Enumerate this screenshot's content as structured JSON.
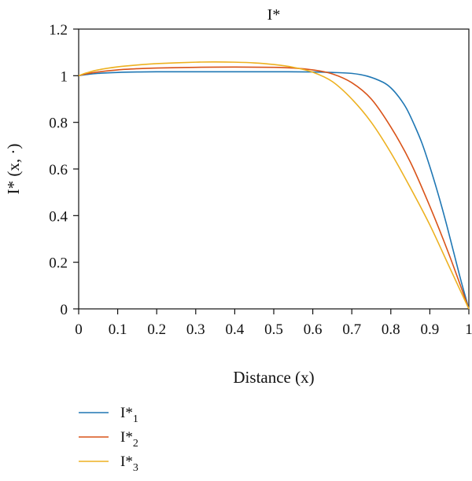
{
  "chart_data": {
    "type": "line",
    "title": "I*",
    "xlabel": "Distance (x)",
    "ylabel": "I* (x, ·)",
    "xlim": [
      0,
      1
    ],
    "ylim": [
      0,
      1.2
    ],
    "x_ticks": [
      "0",
      "0.1",
      "0.2",
      "0.3",
      "0.4",
      "0.5",
      "0.6",
      "0.7",
      "0.8",
      "0.9",
      "1"
    ],
    "y_ticks": [
      "0",
      "0.2",
      "0.4",
      "0.6",
      "0.8",
      "1",
      "1.2"
    ],
    "grid": false,
    "legend_position": "bottom-left",
    "series": [
      {
        "name": "I*1",
        "label_base": "I*",
        "label_sub": "1",
        "color": "#1f77b4",
        "x": [
          0,
          0.02,
          0.05,
          0.1,
          0.15,
          0.2,
          0.3,
          0.4,
          0.5,
          0.6,
          0.65,
          0.7,
          0.74,
          0.78,
          0.8,
          0.82,
          0.84,
          0.86,
          0.88,
          0.9,
          0.92,
          0.94,
          0.96,
          0.98,
          1.0
        ],
        "y": [
          1.0,
          1.005,
          1.01,
          1.014,
          1.016,
          1.017,
          1.017,
          1.017,
          1.017,
          1.016,
          1.014,
          1.01,
          0.998,
          0.972,
          0.948,
          0.91,
          0.86,
          0.79,
          0.71,
          0.61,
          0.5,
          0.38,
          0.25,
          0.12,
          0.0
        ]
      },
      {
        "name": "I*2",
        "label_base": "I*",
        "label_sub": "2",
        "color": "#d95319",
        "x": [
          0,
          0.02,
          0.05,
          0.1,
          0.15,
          0.2,
          0.3,
          0.4,
          0.5,
          0.55,
          0.6,
          0.65,
          0.7,
          0.75,
          0.8,
          0.85,
          0.9,
          0.95,
          1.0
        ],
        "y": [
          1.0,
          1.008,
          1.016,
          1.025,
          1.03,
          1.033,
          1.036,
          1.037,
          1.036,
          1.033,
          1.025,
          1.008,
          0.97,
          0.9,
          0.78,
          0.63,
          0.44,
          0.23,
          0.0
        ]
      },
      {
        "name": "I*3",
        "label_base": "I*",
        "label_sub": "3",
        "color": "#edb120",
        "x": [
          0,
          0.02,
          0.05,
          0.1,
          0.15,
          0.2,
          0.3,
          0.35,
          0.4,
          0.45,
          0.5,
          0.55,
          0.6,
          0.65,
          0.7,
          0.75,
          0.8,
          0.85,
          0.9,
          0.95,
          1.0
        ],
        "y": [
          1.0,
          1.012,
          1.025,
          1.038,
          1.046,
          1.052,
          1.058,
          1.059,
          1.058,
          1.055,
          1.048,
          1.036,
          1.015,
          0.975,
          0.9,
          0.8,
          0.67,
          0.52,
          0.36,
          0.18,
          0.0
        ]
      }
    ]
  }
}
